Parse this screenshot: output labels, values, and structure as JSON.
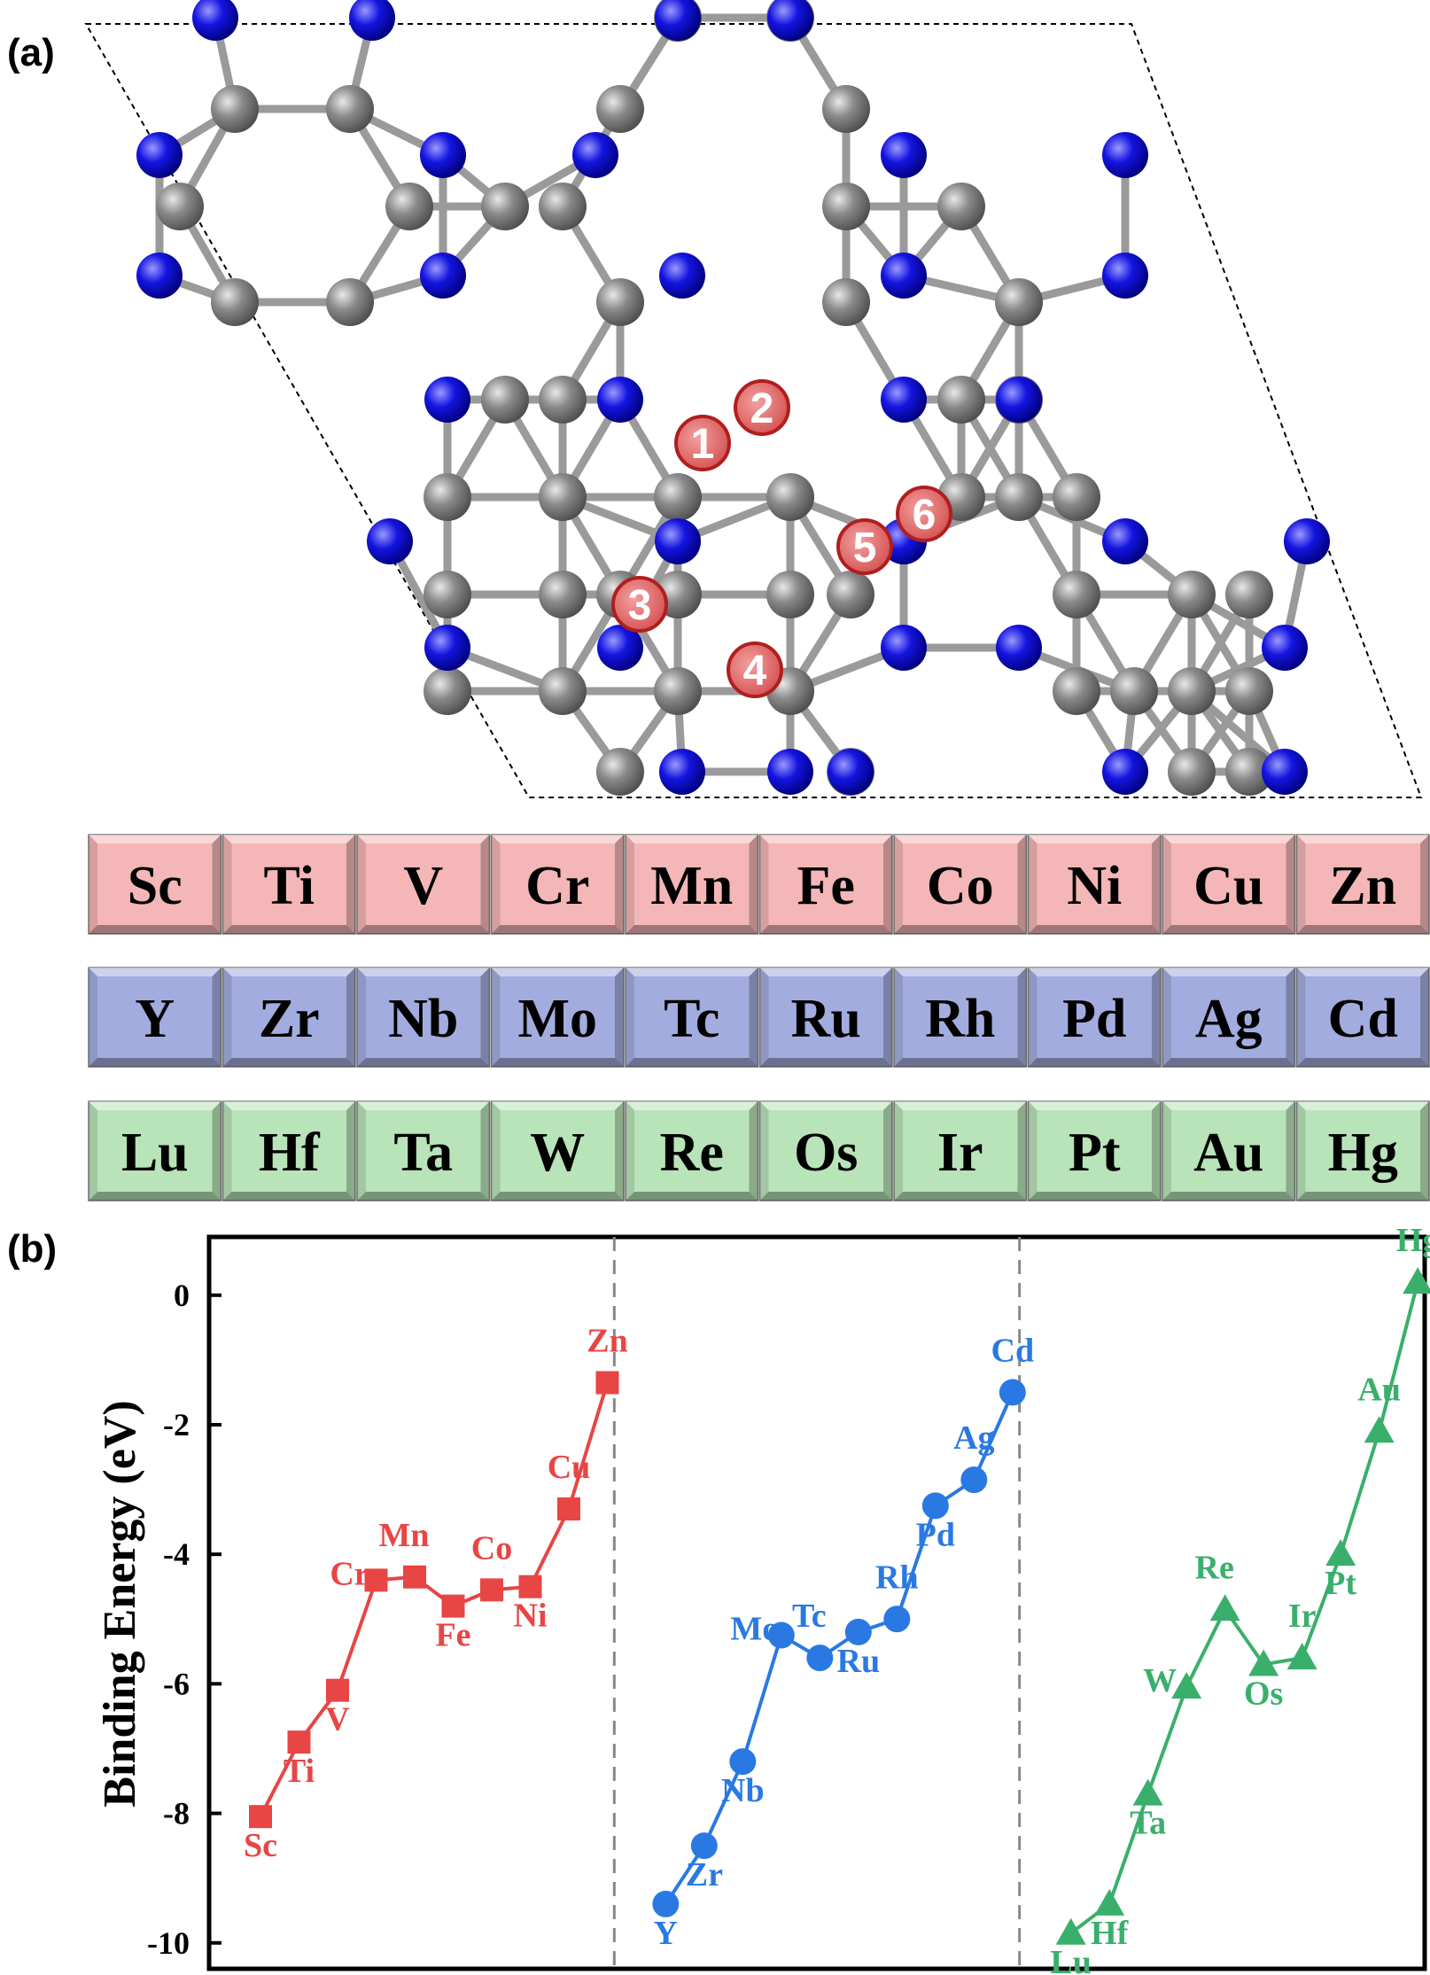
{
  "panel_a": {
    "label": "(a)",
    "site_markers": [
      "1",
      "2",
      "3",
      "4",
      "5",
      "6"
    ],
    "periodic_rows": [
      {
        "color": "#f4b6b6",
        "elements": [
          "Sc",
          "Ti",
          "V",
          "Cr",
          "Mn",
          "Fe",
          "Co",
          "Ni",
          "Cu",
          "Zn"
        ]
      },
      {
        "color": "#a3acde",
        "elements": [
          "Y",
          "Zr",
          "Nb",
          "Mo",
          "Tc",
          "Ru",
          "Rh",
          "Pd",
          "Ag",
          "Cd"
        ]
      },
      {
        "color": "#b9e3b9",
        "elements": [
          "Lu",
          "Hf",
          "Ta",
          "W",
          "Re",
          "Os",
          "Ir",
          "Pt",
          "Au",
          "Hg"
        ]
      }
    ]
  },
  "panel_b": {
    "label": "(b)"
  },
  "chart_data": {
    "type": "line",
    "ylabel": "Binding Energy (eV)",
    "ylim": [
      -10.4,
      0.9
    ],
    "yticks": [
      "0",
      "-2",
      "-4",
      "-6",
      "-8",
      "-10"
    ],
    "grid": false,
    "series": [
      {
        "color": "#e84545",
        "marker": "square",
        "labels": [
          "Sc",
          "Ti",
          "V",
          "Cr",
          "Mn",
          "Fe",
          "Co",
          "Ni",
          "Cu",
          "Zn"
        ],
        "values": [
          -8.05,
          -6.9,
          -6.1,
          -4.4,
          -4.35,
          -4.8,
          -4.55,
          -4.5,
          -3.3,
          -1.35
        ]
      },
      {
        "color": "#2a79e3",
        "marker": "circle",
        "labels": [
          "Y",
          "Zr",
          "Nb",
          "Mo",
          "Tc",
          "Ru",
          "Rh",
          "Pd",
          "Ag",
          "Cd"
        ],
        "values": [
          -9.4,
          -8.5,
          -7.2,
          -5.25,
          -5.6,
          -5.2,
          -5.0,
          -3.25,
          -2.85,
          -1.5
        ]
      },
      {
        "color": "#3aaf6b",
        "marker": "triangle",
        "labels": [
          "Lu",
          "Hf",
          "Ta",
          "W",
          "Re",
          "Os",
          "Ir",
          "Pt",
          "Au",
          "Hg"
        ],
        "values": [
          -9.85,
          -9.4,
          -7.7,
          -6.05,
          -4.85,
          -5.7,
          -5.6,
          -4.0,
          -2.1,
          0.2
        ]
      }
    ]
  }
}
